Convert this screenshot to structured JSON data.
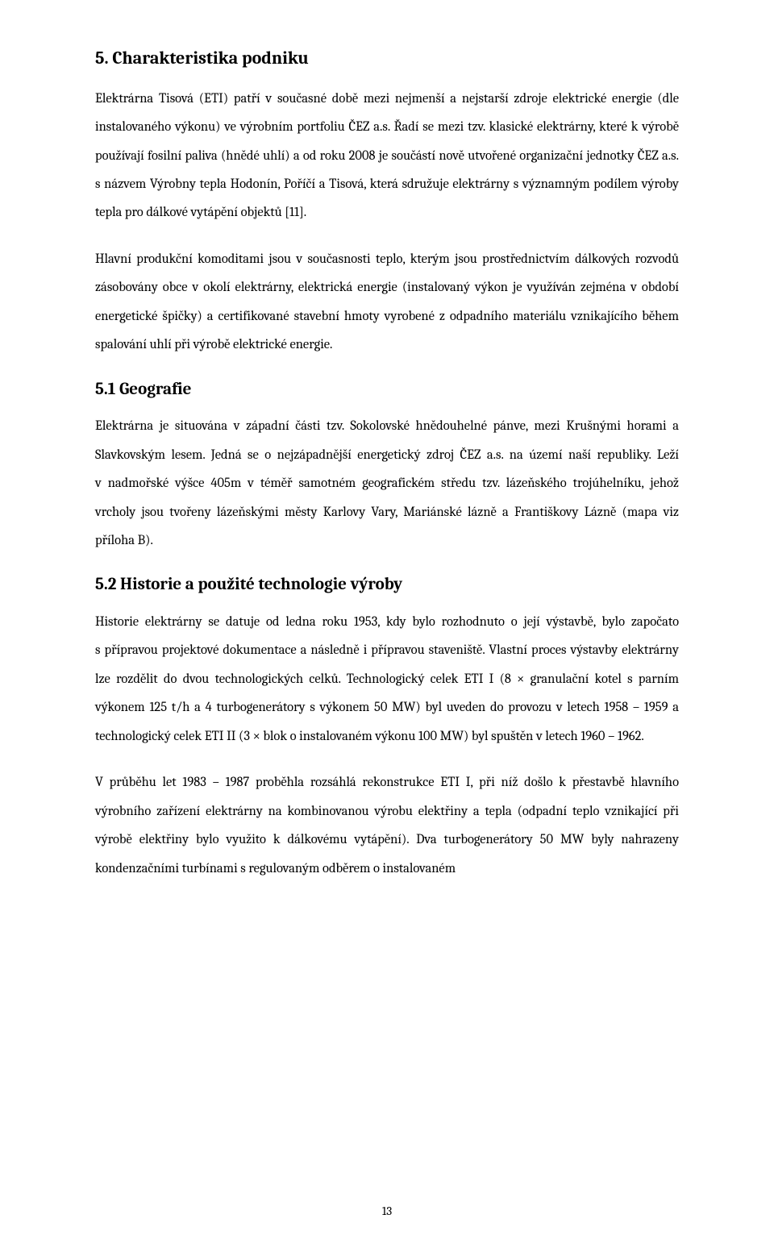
{
  "page": {
    "number": "13",
    "background_color": "#ffffff",
    "text_color": "#000000",
    "body_fontsize": 16.5,
    "heading_fontsize": 22,
    "subheading_fontsize": 21,
    "line_height": 2.15,
    "font_family": "Cambria"
  },
  "headings": {
    "h5": "5. Charakteristika podniku",
    "h5_1": "5.1 Geografie",
    "h5_2": "5.2 Historie a použité technologie výroby"
  },
  "paragraphs": {
    "p1": "Elektrárna Tisová (ETI) patří v současné době mezi nejmenší a nejstarší zdroje elektrické energie (dle instalovaného výkonu) ve výrobním portfoliu ČEZ a.s. Řadí se mezi tzv. klasické elektrárny, které k výrobě používají fosilní paliva (hnědé uhlí) a od roku 2008 je součástí nově utvořené organizační jednotky ČEZ a.s. s názvem Výrobny tepla Hodonín, Poříčí a Tisová, která sdružuje elektrárny s významným podílem výroby tepla pro dálkové vytápění objektů [11].",
    "p2": "Hlavní produkční komoditami jsou v současnosti teplo, kterým jsou prostřednictvím dálkových rozvodů zásobovány obce v okolí elektrárny, elektrická energie (instalovaný výkon je využíván zejména v období energetické špičky) a certifikované stavební hmoty vyrobené z odpadního materiálu vznikajícího během spalování uhlí při výrobě elektrické energie.",
    "p3": "Elektrárna je situována v západní části tzv. Sokolovské hnědouhelné pánve, mezi Krušnými horami a Slavkovským lesem. Jedná se o nejzápadnější energetický zdroj ČEZ a.s. na území naší republiky. Leží v nadmořské výšce 405m v téměř samotném geografickém středu tzv. lázeňského trojúhelníku, jehož vrcholy jsou tvořeny lázeňskými městy Karlovy Vary, Mariánské lázně a Františkovy Lázně (mapa viz příloha B).",
    "p4": "Historie elektrárny se datuje od ledna roku 1953, kdy bylo rozhodnuto o její výstavbě, bylo započato s přípravou projektové dokumentace a následně i přípravou staveniště. Vlastní proces výstavby elektrárny lze rozdělit do dvou technologických celků. Technologický celek ETI I (8 × granulační kotel s parním výkonem 125 t/h a 4 turbogenerátory s výkonem 50 MW) byl uveden do provozu v letech 1958 – 1959 a technologický celek ETI II (3 × blok o instalovaném výkonu 100 MW) byl spuštěn v letech 1960 – 1962.",
    "p5": "V průběhu let 1983 – 1987 proběhla rozsáhlá rekonstrukce ETI I, při níž došlo k přestavbě hlavního výrobního zařízení elektrárny na kombinovanou výrobu elektřiny a tepla (odpadní teplo vznikající při výrobě elektřiny bylo využito k dálkovému vytápění). Dva turbogenerátory 50 MW byly nahrazeny kondenzačními turbínami s regulovaným odběrem o instalovaném"
  }
}
